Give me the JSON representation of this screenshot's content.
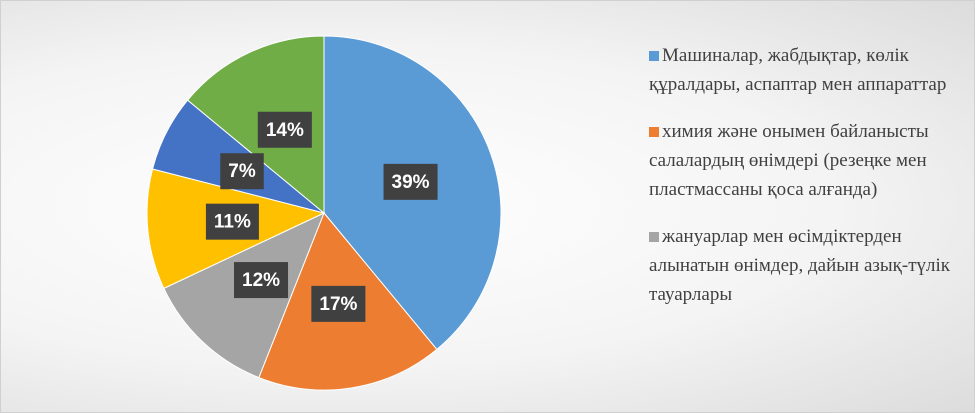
{
  "chart_data": {
    "type": "pie",
    "categories": [
      "Машиналар, жабдықтар, көлік құралдары, аспаптар мен аппараттар",
      "химия және онымен байланысты салалардың өнімдері (резеңке мен пластмассаны қоса алғанда)",
      "жануарлар мен өсімдіктерден алынатын өнімдер, дайын азық-түлік тауарлары",
      null,
      null,
      null
    ],
    "values": [
      39,
      17,
      12,
      11,
      7,
      14
    ],
    "value_labels": [
      "39%",
      "17%",
      "12%",
      "11%",
      "7%",
      "14%"
    ],
    "colors": [
      "#5b9bd5",
      "#ed7d31",
      "#a5a5a5",
      "#ffc000",
      "#4472c4",
      "#70ad47"
    ],
    "legend": "right"
  }
}
